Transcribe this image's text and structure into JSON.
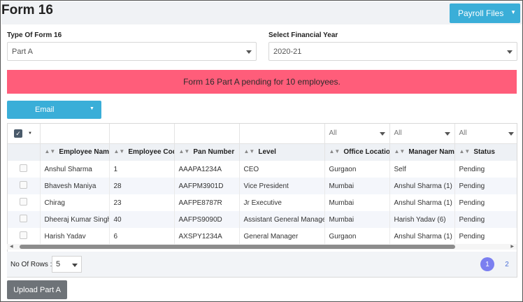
{
  "page": {
    "title": "Form 16"
  },
  "header": {
    "payroll_files_label": "Payroll Files"
  },
  "form_type": {
    "label": "Type Of Form 16",
    "value": "Part A"
  },
  "financial_year": {
    "label": "Select Financial Year",
    "value": "2020-21"
  },
  "alert": {
    "text": "Form 16 Part A pending for 10 employees.",
    "color": "#ff5d7a"
  },
  "toolbar": {
    "email_label": "Email"
  },
  "table": {
    "filters": [
      "All",
      "All",
      "All"
    ],
    "columns": [
      "Employee Name",
      "Employee Code",
      "Pan Number",
      "Level",
      "Office Location",
      "Manager Name",
      "Status"
    ],
    "rows": [
      [
        "Anshul Sharma",
        "1",
        "AAAPA1234A",
        "CEO",
        "Gurgaon",
        "Self",
        "Pending"
      ],
      [
        "Bhavesh Maniya",
        "28",
        "AAFPM3901D",
        "Vice President",
        "Mumbai",
        "Anshul Sharma (1)",
        "Pending"
      ],
      [
        "Chirag",
        "23",
        "AAFPE8787R",
        "Jr Executive",
        "Mumbai",
        "Anshul Sharma (1)",
        "Pending"
      ],
      [
        "Dheeraj Kumar Singh",
        "40",
        "AAFPS9090D",
        "Assistant General Manager",
        "Mumbai",
        "Harish Yadav (6)",
        "Pending"
      ],
      [
        "Harish Yadav",
        "6",
        "AXSPY1234A",
        "General Manager",
        "Gurgaon",
        "Anshul Sharma (1)",
        "Pending"
      ]
    ]
  },
  "footer": {
    "rows_label": "No Of Rows :",
    "rows_value": "5",
    "pages": [
      "1",
      "2"
    ],
    "current_page": "1"
  },
  "actions": {
    "upload_label": "Upload Part A"
  },
  "colors": {
    "accent": "#3aaed8",
    "active_page": "#7b7ff0",
    "upload_button": "#6e7378"
  }
}
